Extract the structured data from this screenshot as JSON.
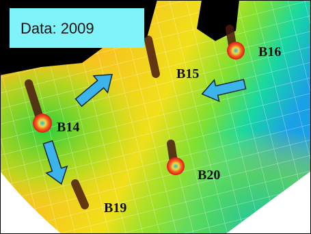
{
  "title": "Data: 2009",
  "wells": [
    {
      "label": "B16"
    },
    {
      "label": "B15"
    },
    {
      "label": "B14"
    },
    {
      "label": "B20"
    },
    {
      "label": "B19"
    }
  ]
}
